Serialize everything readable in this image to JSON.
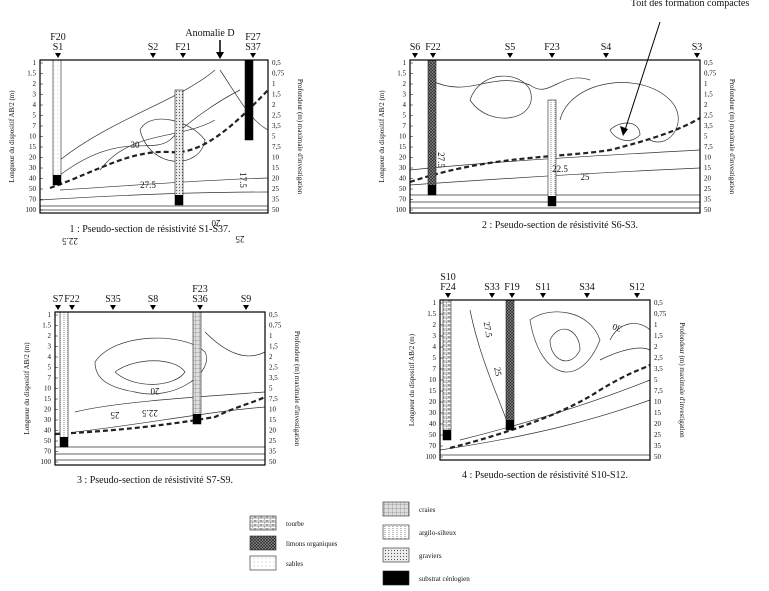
{
  "axis_titles": {
    "left": "Longueur du dispositif AB/2 (m)",
    "right": "Profondeur (m) maximale d'investigation"
  },
  "left_ticks": [
    "1",
    "1.5",
    "2",
    "3",
    "4",
    "5",
    "7",
    "10",
    "15",
    "20",
    "30",
    "40",
    "50",
    "70",
    "100"
  ],
  "right_ticks": [
    "0,5",
    "0,75",
    "1",
    "1,5",
    "2",
    "2,5",
    "3,5",
    "5",
    "7,5",
    "10",
    "15",
    "20",
    "25",
    "35",
    "50"
  ],
  "panels": [
    {
      "stations": [
        [
          "F20",
          "S1"
        ],
        [
          "S2"
        ],
        [
          "F21"
        ],
        [
          "F27",
          "S37"
        ]
      ],
      "annotation": "Anomalie D",
      "contour_labels": [
        "30",
        "27.5",
        "17.5",
        "20",
        "25",
        "22.5"
      ],
      "caption": "1 : Pseudo-section de résistivité S1-S37."
    },
    {
      "stations": [
        [
          "S6"
        ],
        [
          "F22"
        ],
        [
          "S5"
        ],
        [
          "F23"
        ],
        [
          "S4"
        ],
        [
          "S3"
        ]
      ],
      "annotation": "Toit des formation compactes",
      "contour_labels": [
        "27.5",
        "25",
        "22.5"
      ],
      "caption": "2 : Pseudo-section de résistivité S6-S3."
    },
    {
      "stations": [
        [
          "S7"
        ],
        [
          "F22"
        ],
        [
          "S35"
        ],
        [
          "S8"
        ],
        [
          "F23",
          "S36"
        ],
        [
          "S9"
        ]
      ],
      "contour_labels": [
        "20",
        "22.5",
        "25"
      ],
      "caption": "3 : Pseudo-section de résistivité S7-S9."
    },
    {
      "stations": [
        [
          "S10",
          "F24"
        ],
        [
          "S33"
        ],
        [
          "F19"
        ],
        [
          "S11"
        ],
        [
          "S34"
        ],
        [
          "S12"
        ]
      ],
      "contour_labels": [
        "27.5",
        "25",
        "30"
      ],
      "caption": "4 : Pseudo-section de résistivité S10-S12."
    }
  ],
  "legend": [
    "tourbe",
    "limons organiques",
    "sables",
    "craies",
    "argilo-silteux",
    "graviers",
    "substrat cénlogien"
  ]
}
